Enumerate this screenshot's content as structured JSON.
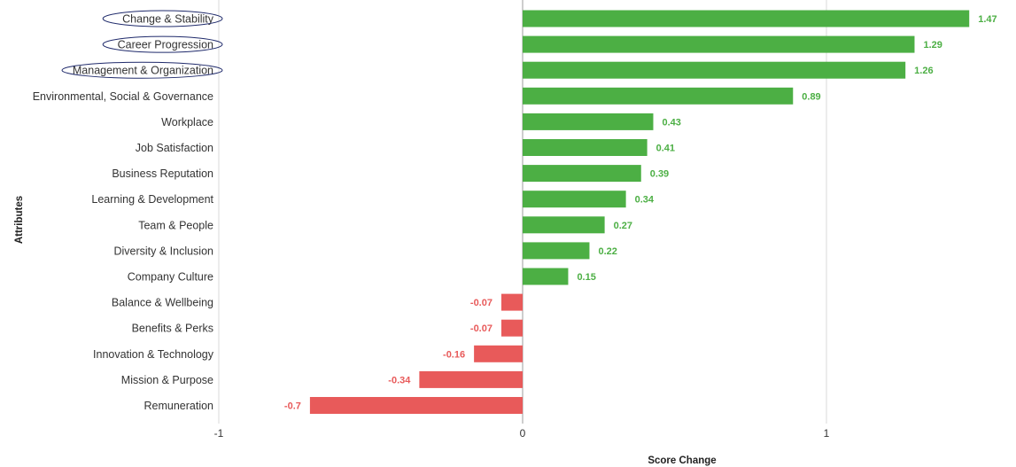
{
  "chart_data": {
    "type": "bar",
    "orientation": "horizontal",
    "categories": [
      "Change & Stability",
      "Career Progression",
      "Management & Organization",
      "Environmental, Social & Governance",
      "Workplace",
      "Job Satisfaction",
      "Business Reputation",
      "Learning & Development",
      "Team & People",
      "Diversity & Inclusion",
      "Company Culture",
      "Balance & Wellbeing",
      "Benefits & Perks",
      "Innovation & Technology",
      "Mission & Purpose",
      "Remuneration"
    ],
    "values": [
      1.47,
      1.29,
      1.26,
      0.89,
      0.43,
      0.41,
      0.39,
      0.34,
      0.27,
      0.22,
      0.15,
      -0.07,
      -0.07,
      -0.16,
      -0.34,
      -0.7
    ],
    "value_labels": [
      "1.47",
      "1.29",
      "1.26",
      "0.89",
      "0.43",
      "0.41",
      "0.39",
      "0.34",
      "0.27",
      "0.22",
      "0.15",
      "-0.07",
      "-0.07",
      "-0.16",
      "-0.34",
      "-0.7"
    ],
    "circled_categories": [
      "Change & Stability",
      "Career Progression",
      "Management & Organization"
    ],
    "xlabel": "Score Change",
    "ylabel": "Attributes",
    "xlim": [
      -1,
      1.5
    ],
    "xticks": [
      -1,
      0,
      1
    ],
    "xtick_labels": [
      "-1",
      "0",
      "1"
    ],
    "grid": "vertical",
    "legend": "none",
    "colors": {
      "positive": "#4caf44",
      "negative": "#e85a5a",
      "positive_text": "#4caf44",
      "negative_text": "#e85a5a",
      "gridline": "#d9d9d9",
      "zero_line": "#9e9e9e",
      "circle": "#1f2a6b"
    }
  }
}
